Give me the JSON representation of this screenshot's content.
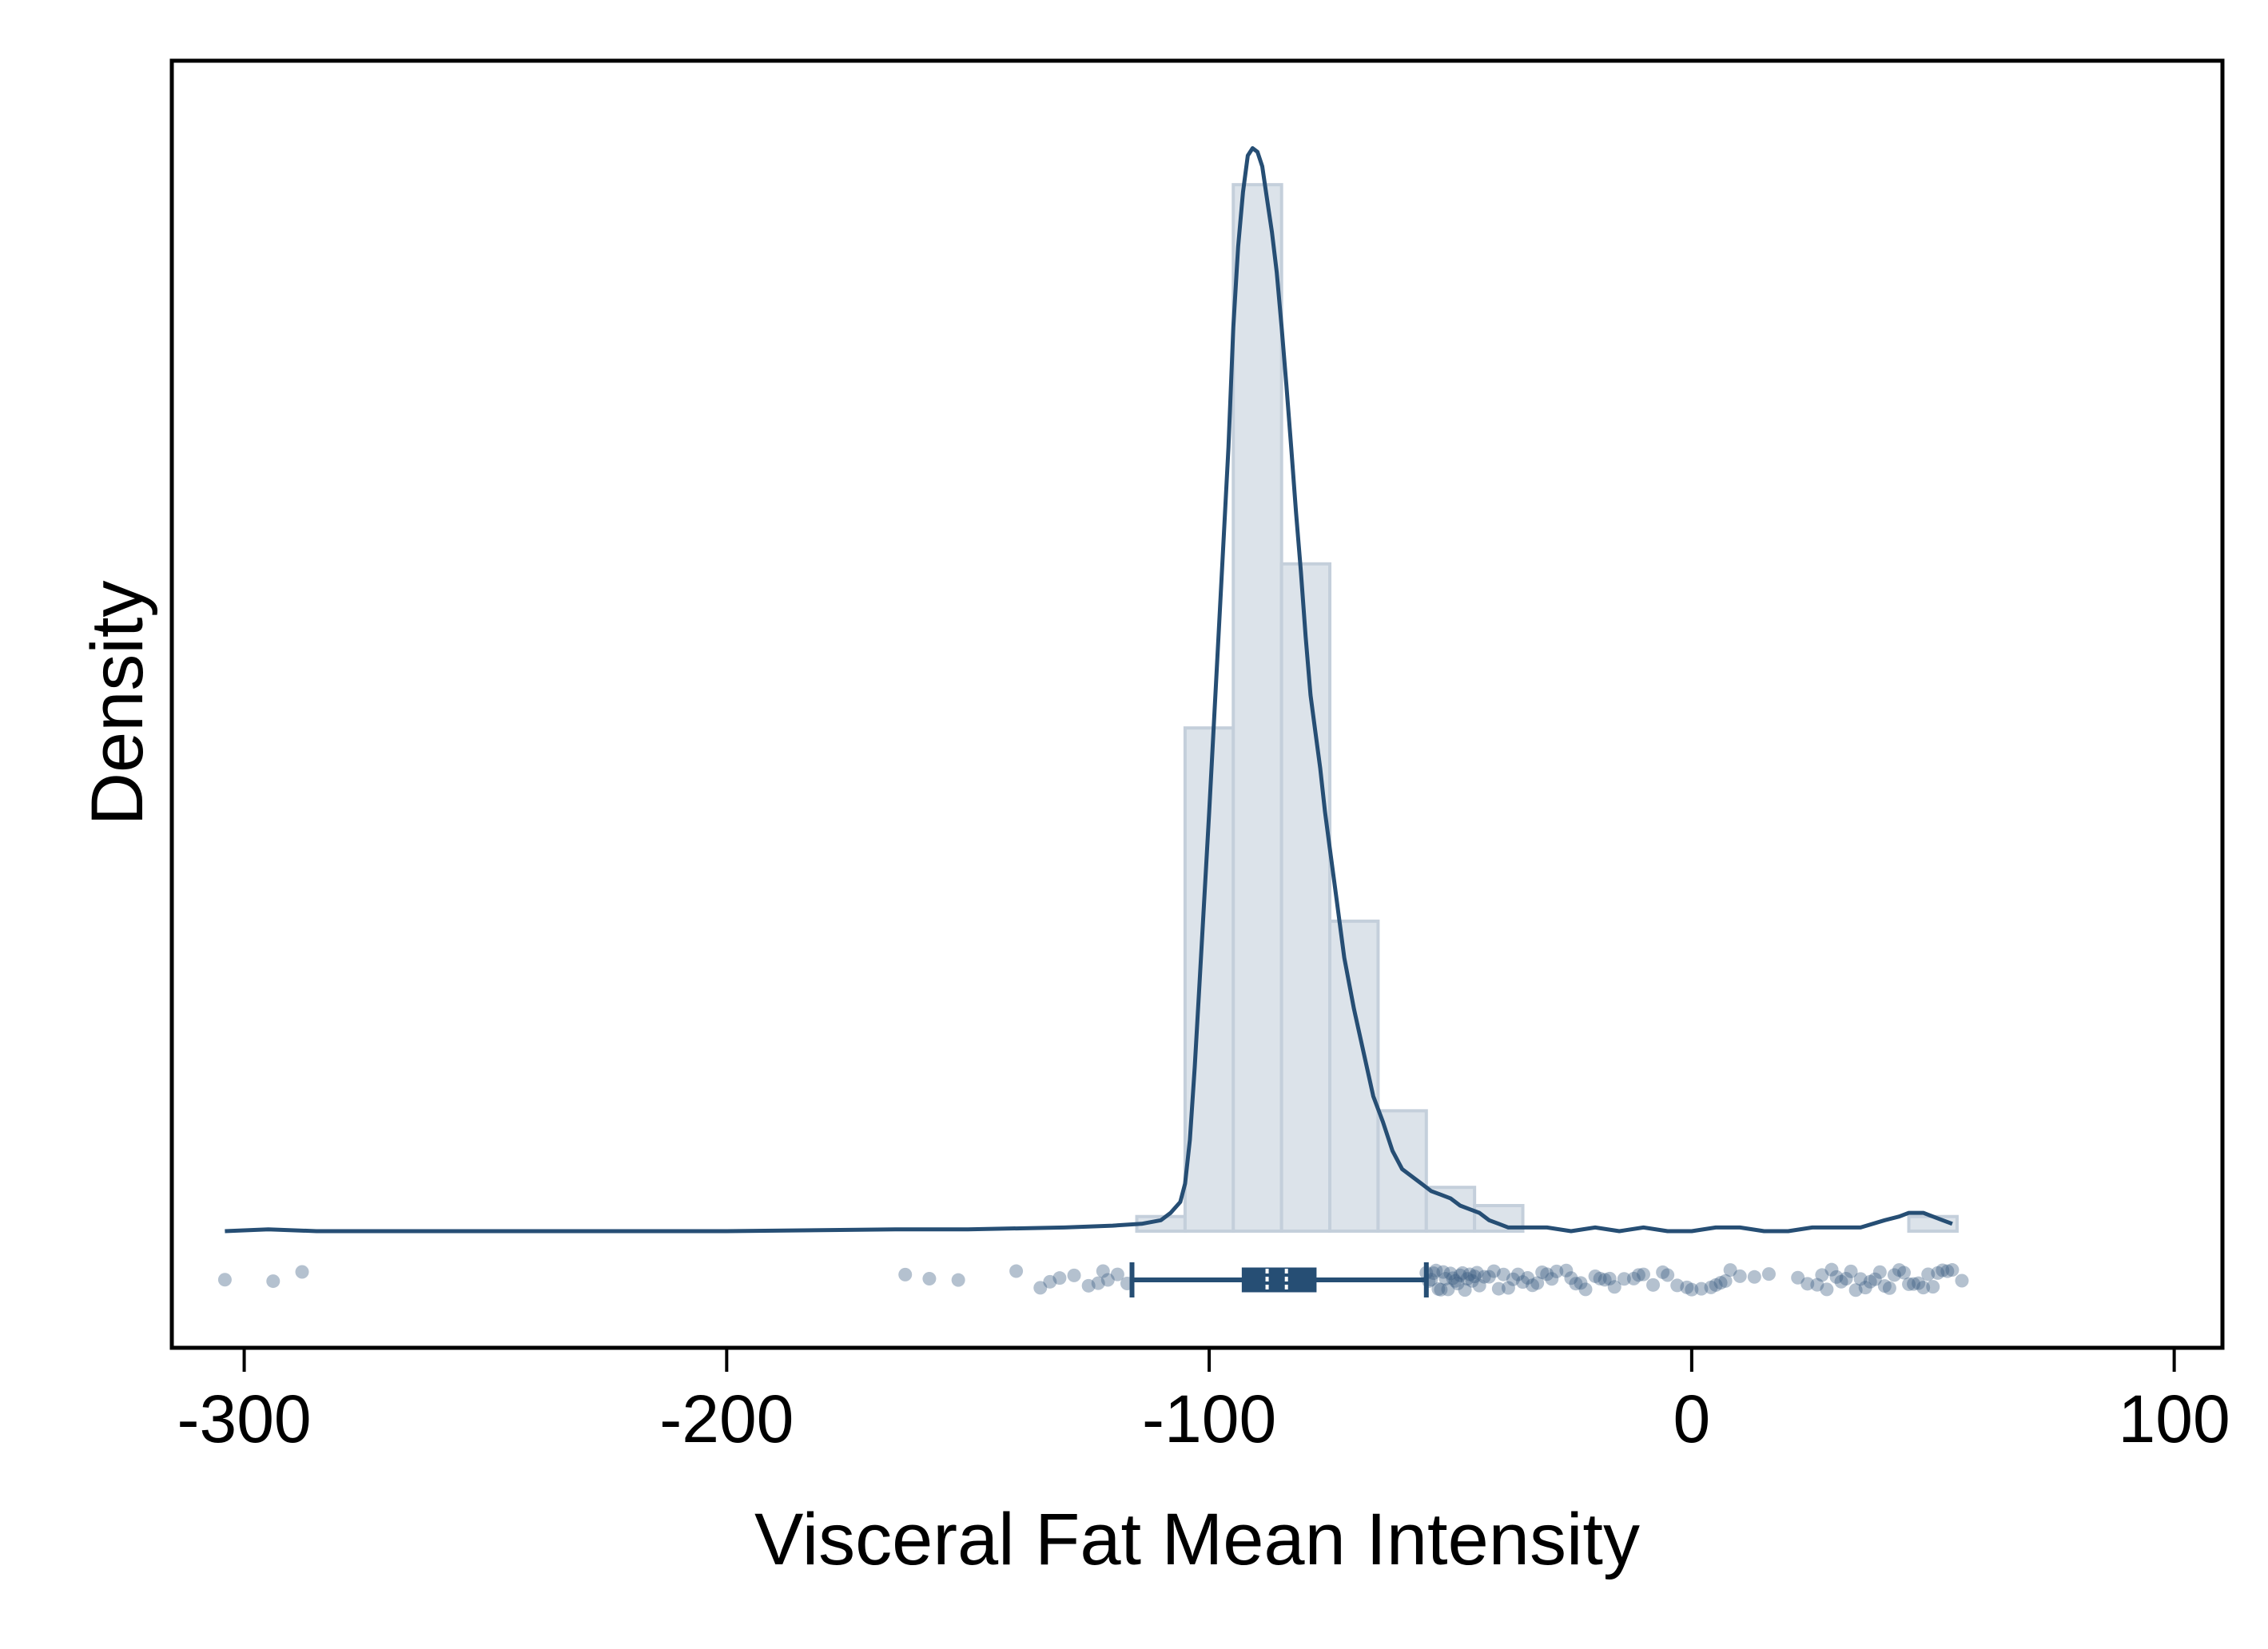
{
  "chart_data": {
    "type": "histogram",
    "xlabel": "Visceral Fat Mean Intensity",
    "ylabel": "Density",
    "xlim": [
      -315,
      110
    ],
    "ylim": [
      -0.0032,
      0.0321
    ],
    "x_ticks": [
      -300,
      -200,
      -100,
      0,
      100
    ],
    "y_ticks_shown": false,
    "grid": false,
    "colors": {
      "bar_fill": "#dce3ea",
      "bar_stroke": "#c4cfdb",
      "curve": "#264e74",
      "points": "#3a5d80",
      "median_tick": "#ffffff"
    },
    "histogram": {
      "bins": [
        {
          "x0": -115,
          "x1": -105,
          "density": 0.0004
        },
        {
          "x0": -105,
          "x1": -95,
          "density": 0.0138
        },
        {
          "x0": -95,
          "x1": -85,
          "density": 0.0287
        },
        {
          "x0": -85,
          "x1": -75,
          "density": 0.0183
        },
        {
          "x0": -75,
          "x1": -65,
          "density": 0.0085
        },
        {
          "x0": -65,
          "x1": -55,
          "density": 0.0033
        },
        {
          "x0": -55,
          "x1": -45,
          "density": 0.0012
        },
        {
          "x0": -45,
          "x1": -35,
          "density": 0.0007
        },
        {
          "x0": 45,
          "x1": 55,
          "density": 0.0004
        }
      ]
    },
    "density_curve": {
      "x": [
        -304,
        -295,
        -285,
        -270,
        -250,
        -200,
        -165,
        -150,
        -130,
        -120,
        -114,
        -110,
        -108,
        -106,
        -105,
        -104,
        -103,
        -102,
        -100,
        -98,
        -96,
        -95,
        -94,
        -93,
        -92,
        -91,
        -90,
        -89,
        -88,
        -87,
        -86,
        -85,
        -84,
        -83,
        -82,
        -81,
        -80,
        -79,
        -78,
        -77,
        -76,
        -75,
        -74,
        -73,
        -72,
        -70,
        -68,
        -66,
        -64,
        -62,
        -60,
        -58,
        -56,
        -54,
        -52,
        -50,
        -48,
        -46,
        -44,
        -42,
        -40,
        -38,
        -36,
        -34,
        -30,
        -25,
        -20,
        -15,
        -10,
        -5,
        0,
        5,
        10,
        15,
        20,
        25,
        30,
        35,
        40,
        43,
        45,
        48,
        50,
        52,
        54
      ],
      "y": [
        0.0,
        5e-05,
        0.0,
        0.0,
        0.0,
        0.0,
        5e-05,
        5e-05,
        0.0001,
        0.00015,
        0.0002,
        0.0003,
        0.0005,
        0.0008,
        0.0013,
        0.0025,
        0.0045,
        0.0068,
        0.0115,
        0.0165,
        0.0215,
        0.0248,
        0.027,
        0.0285,
        0.0295,
        0.0297,
        0.0296,
        0.0292,
        0.0283,
        0.0274,
        0.0263,
        0.0248,
        0.0232,
        0.0215,
        0.0197,
        0.0181,
        0.0163,
        0.0147,
        0.0137,
        0.0127,
        0.0115,
        0.0105,
        0.0095,
        0.0085,
        0.0075,
        0.0061,
        0.0049,
        0.0037,
        0.003,
        0.0022,
        0.0017,
        0.0015,
        0.0013,
        0.0011,
        0.001,
        0.0009,
        0.0007,
        0.0006,
        0.0005,
        0.0003,
        0.0002,
        0.0001,
        0.0001,
        0.0001,
        0.0001,
        0.0,
        0.0001,
        0.0,
        0.0001,
        0.0,
        0.0,
        0.0001,
        0.0001,
        0.0,
        0.0,
        0.0001,
        0.0001,
        0.0001,
        0.0003,
        0.0004,
        0.0005,
        0.0005,
        0.0004,
        0.0003,
        0.0002
      ]
    },
    "boxplot": {
      "whisker_low": -116,
      "q1": -93,
      "median": -88,
      "mean": -84,
      "q3": -78,
      "whisker_high": -55
    },
    "outliers": [
      -304,
      -294,
      -288,
      -163,
      -158,
      -152,
      -140,
      -135,
      -133,
      -131,
      -128,
      -125,
      -123,
      -122,
      -121,
      -119,
      -117,
      -55,
      -54.5,
      -54,
      -53.5,
      -53,
      -52.5,
      -52,
      -51.5,
      -51,
      -50.5,
      -50,
      -49.5,
      -49,
      -48.5,
      -48,
      -47.5,
      -47,
      -46.5,
      -46,
      -45.5,
      -45,
      -44.5,
      -44,
      -43,
      -42,
      -41,
      -40,
      -39,
      -38,
      -37,
      -36,
      -35,
      -34,
      -33,
      -32,
      -31,
      -30,
      -29,
      -28,
      -26,
      -25,
      -24,
      -23,
      -22,
      -20,
      -19,
      -18,
      -17,
      -16,
      -14,
      -12,
      -11,
      -10,
      -8,
      -6,
      -5,
      -3,
      -1,
      0,
      2,
      4,
      5,
      6,
      7,
      8,
      10,
      13,
      16,
      22,
      24,
      26,
      27,
      28,
      29,
      30,
      31,
      32,
      33,
      34,
      35,
      36,
      37,
      38,
      39,
      40,
      41,
      42,
      43,
      44,
      45,
      46,
      47,
      48,
      49,
      50,
      51,
      52,
      53,
      54,
      56
    ]
  }
}
